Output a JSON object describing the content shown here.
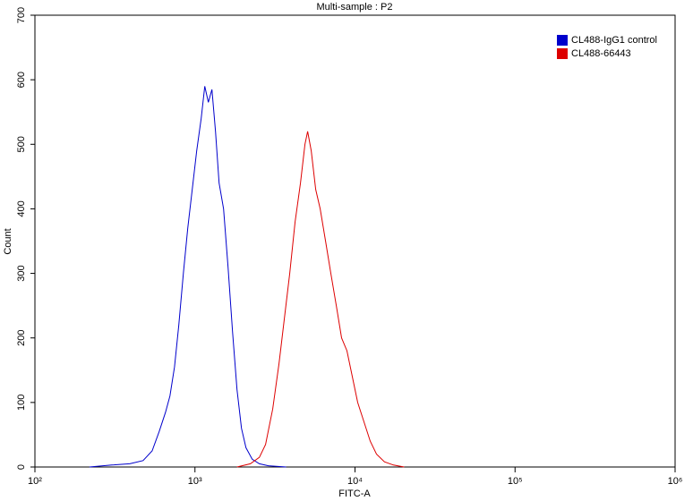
{
  "chart_data": {
    "type": "line",
    "title": "Multi-sample : P2",
    "x_label": "FITC-A",
    "y_label": "Count",
    "log_x": true,
    "legend": "top-right",
    "xlim": [
      100,
      1000000
    ],
    "xticks": [
      {
        "value": 100,
        "label": "10²"
      },
      {
        "value": 1000,
        "label": "10³"
      },
      {
        "value": 10000,
        "label": "10⁴"
      },
      {
        "value": 100000,
        "label": "10⁵"
      },
      {
        "value": 1000000,
        "label": "10⁶"
      }
    ],
    "ylim": [
      0,
      700
    ],
    "yticks": [
      0,
      100,
      200,
      300,
      400,
      500,
      600,
      700
    ],
    "series": [
      {
        "name": "CL488-IgG1 control",
        "color": "#0000cc",
        "x": [
          219,
          302,
          391,
          474,
          540,
          598,
          655,
          698,
          745,
          793,
          846,
          902,
          962,
          1026,
          1094,
          1151,
          1212,
          1277,
          1344,
          1415,
          1510,
          1610,
          1717,
          1831,
          1953,
          2082,
          2278,
          2525,
          2872,
          3715
        ],
        "values": [
          0,
          3,
          5,
          10,
          25,
          55,
          85,
          110,
          155,
          220,
          300,
          370,
          430,
          490,
          540,
          590,
          565,
          585,
          520,
          440,
          400,
          310,
          210,
          120,
          60,
          30,
          12,
          5,
          2,
          0
        ]
      },
      {
        "name": "CL488-66443",
        "color": "#dd0000",
        "x": [
          1831,
          2218,
          2525,
          2760,
          3060,
          3350,
          3620,
          3910,
          4225,
          4565,
          4865,
          5060,
          5325,
          5680,
          6060,
          6545,
          7065,
          7635,
          8245,
          8910,
          9620,
          10400,
          11380,
          12450,
          13620,
          15280,
          17380,
          20280
        ],
        "values": [
          0,
          5,
          15,
          35,
          90,
          160,
          230,
          300,
          380,
          440,
          500,
          520,
          490,
          430,
          400,
          350,
          300,
          250,
          200,
          180,
          140,
          100,
          70,
          40,
          20,
          8,
          3,
          0
        ]
      }
    ]
  }
}
